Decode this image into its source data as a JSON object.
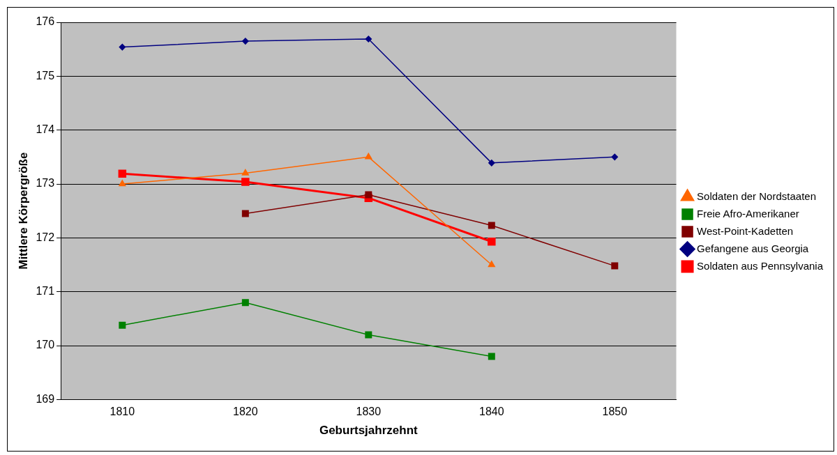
{
  "chart_data": {
    "type": "line",
    "xlabel": "Geburtsjahrzehnt",
    "ylabel": "Mittlere Körpergröße",
    "categories": [
      "1810",
      "1820",
      "1830",
      "1840",
      "1850"
    ],
    "ylim": [
      169,
      176
    ],
    "yticks": [
      169,
      170,
      171,
      172,
      173,
      174,
      175,
      176
    ],
    "grid": "y",
    "legend": "right",
    "series": [
      {
        "name": "Soldaten der Nordstaaten",
        "color": "#ff6600",
        "marker": "triangle",
        "values": [
          173.0,
          173.2,
          173.5,
          171.5,
          null
        ]
      },
      {
        "name": "Freie Afro-Amerikaner",
        "color": "#008000",
        "marker": "square",
        "values": [
          170.38,
          170.8,
          170.2,
          169.8,
          null
        ]
      },
      {
        "name": "West-Point-Kadetten",
        "color": "#800000",
        "marker": "square",
        "values": [
          null,
          172.45,
          172.8,
          172.23,
          171.48
        ]
      },
      {
        "name": "Gefangene aus Georgia",
        "color": "#000080",
        "marker": "diamond",
        "values": [
          175.54,
          175.65,
          175.69,
          173.39,
          173.5
        ]
      },
      {
        "name": "Soldaten aus Pennsylvania",
        "color": "#ff0000",
        "marker": "square",
        "values": [
          173.19,
          173.04,
          172.74,
          171.93,
          null
        ]
      }
    ]
  }
}
